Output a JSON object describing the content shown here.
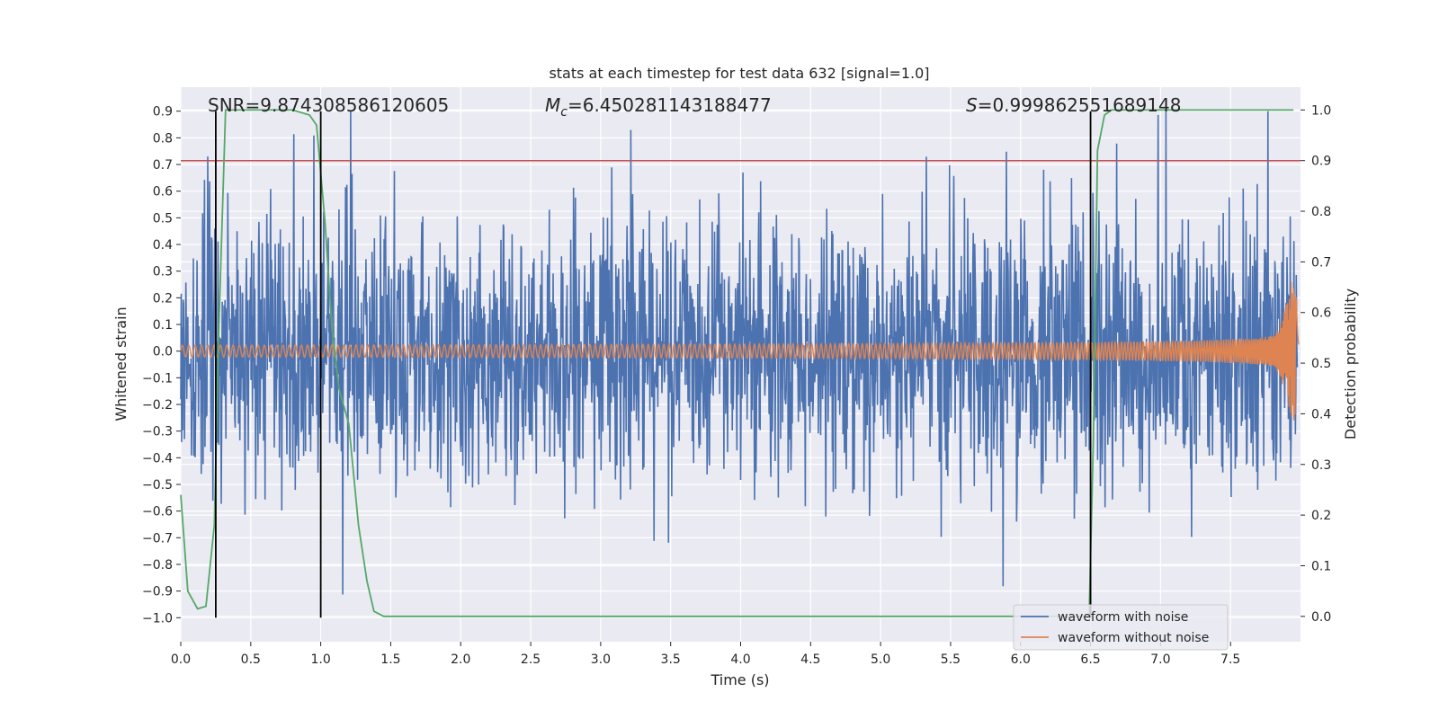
{
  "chart_data": {
    "type": "line",
    "title": "stats at each timestep for test data 632 [signal=1.0]",
    "xlabel": "Time (s)",
    "ylabel": "Whitened strain",
    "y2label": "Detection probability",
    "xlim": [
      0.0,
      8.0
    ],
    "ylim": [
      -1.09,
      0.99
    ],
    "y2lim": [
      -0.05,
      1.045
    ],
    "xticks": [
      0.0,
      0.5,
      1.0,
      1.5,
      2.0,
      2.5,
      3.0,
      3.5,
      4.0,
      4.5,
      5.0,
      5.5,
      6.0,
      6.5,
      7.0,
      7.5
    ],
    "xtick_labels": [
      "0.0",
      "0.5",
      "1.0",
      "1.5",
      "2.0",
      "2.5",
      "3.0",
      "3.5",
      "4.0",
      "4.5",
      "5.0",
      "5.5",
      "6.0",
      "6.5",
      "7.0",
      "7.5"
    ],
    "yticks": [
      0.9,
      0.8,
      0.7,
      0.6,
      0.5,
      0.4,
      0.3,
      0.2,
      0.1,
      0.0,
      -0.1,
      -0.2,
      -0.3,
      -0.4,
      -0.5,
      -0.6,
      -0.7,
      -0.8,
      -0.9,
      -1.0
    ],
    "ytick_labels": [
      "0.9",
      "0.8",
      "0.7",
      "0.6",
      "0.5",
      "0.4",
      "0.3",
      "0.2",
      "0.1",
      "0.0",
      "−0.1",
      "−0.2",
      "−0.3",
      "−0.4",
      "−0.5",
      "−0.6",
      "−0.7",
      "−0.8",
      "−0.9",
      "−1.0"
    ],
    "y2ticks": [
      1.0,
      0.9,
      0.8,
      0.7,
      0.6,
      0.5,
      0.4,
      0.3,
      0.2,
      0.1,
      0.0
    ],
    "y2tick_labels": [
      "1.0",
      "0.9",
      "0.8",
      "0.7",
      "0.6",
      "0.5",
      "0.4",
      "0.3",
      "0.2",
      "0.1",
      "0.0"
    ],
    "threshold": 0.9,
    "vlines": [
      0.25,
      1.0,
      6.5
    ],
    "vline_range": [
      -1.0,
      0.9
    ],
    "annotations": {
      "snr": "SNR=9.874308586120605",
      "mc_symbol": "M",
      "mc_sub": "c",
      "mc_value": "=6.450281143188477",
      "s_symbol": "S",
      "s_value": "=0.999862551689148"
    },
    "annotation_x": [
      0.19,
      2.6,
      5.6
    ],
    "annotation_y": 0.88,
    "series": [
      {
        "name": "waveform with noise",
        "color": "#4c72b0",
        "description": "dense whitened noise roughly spanning -0.55..0.6 with spikes to ~0.9 and down to ~-1.0"
      },
      {
        "name": "waveform without noise",
        "color": "#dd8452",
        "description": "chirp signal with amplitude growing from ~0.02 to ~0.25 near t=7.95"
      },
      {
        "name": "detection probability",
        "color": "#55a868",
        "axis": "right",
        "x": [
          0.0,
          0.05,
          0.12,
          0.18,
          0.24,
          0.27,
          0.32,
          0.4,
          0.6,
          0.8,
          0.92,
          0.97,
          1.03,
          1.08,
          1.13,
          1.2,
          1.27,
          1.33,
          1.38,
          1.45,
          2.0,
          3.0,
          4.0,
          5.0,
          6.0,
          6.49,
          6.52,
          6.55,
          6.6,
          6.65,
          7.0,
          7.5,
          7.95
        ],
        "y": [
          0.24,
          0.05,
          0.015,
          0.02,
          0.18,
          0.55,
          1.0,
          1.0,
          1.0,
          1.0,
          0.99,
          0.97,
          0.78,
          0.57,
          0.45,
          0.38,
          0.18,
          0.07,
          0.01,
          0.0,
          0.0,
          0.0,
          0.0,
          0.0,
          0.0,
          0.0,
          0.35,
          0.92,
          0.99,
          1.0,
          1.0,
          1.0,
          1.0
        ]
      }
    ],
    "legend": {
      "position": "lower-right",
      "entries": [
        "waveform with noise",
        "waveform without noise"
      ]
    },
    "colors": {
      "background": "#eaeaf2",
      "grid": "#ffffff",
      "threshold": "#c44e52",
      "vline": "#000000"
    },
    "grid": true
  }
}
